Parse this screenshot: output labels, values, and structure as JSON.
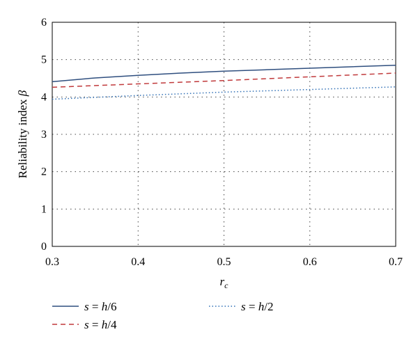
{
  "chart_data": {
    "type": "line",
    "xlabel": {
      "main": "r",
      "sub": "c"
    },
    "ylabel": {
      "main": "Reliability index",
      "symbol": "β"
    },
    "xlim": [
      0.3,
      0.7
    ],
    "ylim": [
      0,
      6
    ],
    "xticks": [
      "0.3",
      "0.4",
      "0.5",
      "0.6",
      "0.7"
    ],
    "yticks": [
      "0",
      "1",
      "2",
      "3",
      "4",
      "5",
      "6"
    ],
    "grid": true,
    "legend_position": "bottom",
    "series": [
      {
        "name": {
          "var": "s",
          "eq": " = ",
          "num": "h",
          "den": "/6"
        },
        "color": "#2e4e7e",
        "dash": "solid",
        "x": [
          0.3,
          0.35,
          0.4,
          0.45,
          0.5,
          0.55,
          0.6,
          0.65,
          0.7
        ],
        "y": [
          4.41,
          4.51,
          4.58,
          4.64,
          4.69,
          4.73,
          4.77,
          4.81,
          4.85
        ]
      },
      {
        "name": {
          "var": "s",
          "eq": " = ",
          "num": "h",
          "den": "/4"
        },
        "color": "#c0393b",
        "dash": "dashed",
        "x": [
          0.3,
          0.4,
          0.5,
          0.6,
          0.7
        ],
        "y": [
          4.26,
          4.35,
          4.44,
          4.54,
          4.64
        ]
      },
      {
        "name": {
          "var": "s",
          "eq": " = ",
          "num": "h",
          "den": "/2"
        },
        "color": "#2f6fb5",
        "dash": "dotted",
        "x": [
          0.3,
          0.4,
          0.5,
          0.6,
          0.7
        ],
        "y": [
          3.94,
          4.04,
          4.13,
          4.2,
          4.27
        ]
      }
    ]
  }
}
